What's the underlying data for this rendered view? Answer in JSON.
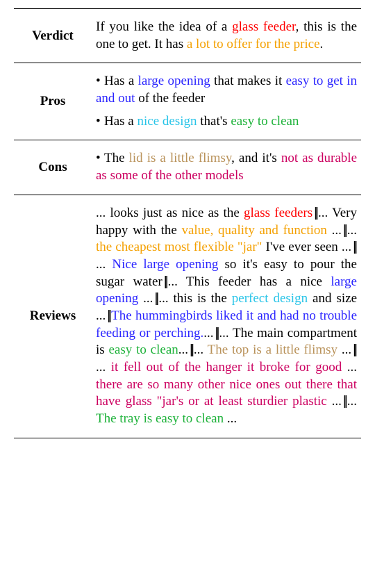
{
  "colors": {
    "red": "#ff0000",
    "orange": "#f4a000",
    "blue": "#2a24ff",
    "cyan": "#28c4e8",
    "green": "#1eb23a",
    "brown": "#b9925a",
    "crimson": "#cc0060",
    "black": "#000000"
  },
  "font": {
    "family": "Times New Roman",
    "size_pt": 19,
    "line_height": 1.3
  },
  "table": {
    "rows": [
      {
        "label": "Verdict",
        "spans": [
          {
            "t": "If you like the idea of a ",
            "c": "black"
          },
          {
            "t": "glass feeder",
            "c": "red"
          },
          {
            "t": ", this is the one to get. It has ",
            "c": "black"
          },
          {
            "t": "a lot to offer for the price",
            "c": "orange"
          },
          {
            "t": ".",
            "c": "black"
          }
        ]
      },
      {
        "label": "Pros",
        "bullets": [
          [
            {
              "t": "Has a ",
              "c": "black"
            },
            {
              "t": "large opening",
              "c": "blue"
            },
            {
              "t": " that makes it ",
              "c": "black"
            },
            {
              "t": "easy to get in and out",
              "c": "blue"
            },
            {
              "t": " of the feeder",
              "c": "black"
            }
          ],
          [
            {
              "t": "Has a ",
              "c": "black"
            },
            {
              "t": "nice design",
              "c": "cyan"
            },
            {
              "t": " that's ",
              "c": "black"
            },
            {
              "t": "easy to clean",
              "c": "green"
            }
          ]
        ]
      },
      {
        "label": "Cons",
        "bullets": [
          [
            {
              "t": "The ",
              "c": "black"
            },
            {
              "t": "lid is a little flimsy",
              "c": "brown"
            },
            {
              "t": ", and it's ",
              "c": "black"
            },
            {
              "t": "not as durable as some of the other models",
              "c": "crimson"
            }
          ]
        ]
      },
      {
        "label": "Reviews",
        "spans": [
          {
            "t": "... looks just as nice as the ",
            "c": "black"
          },
          {
            "t": "glass feeders",
            "c": "red"
          },
          {
            "sep": true
          },
          {
            "t": "... Very happy with the ",
            "c": "black"
          },
          {
            "t": "value, quality and function",
            "c": "orange"
          },
          {
            "t": " ...",
            "c": "black"
          },
          {
            "sep": true
          },
          {
            "t": "... ",
            "c": "black"
          },
          {
            "t": "the cheapest most flexible \"jar\"",
            "c": "orange"
          },
          {
            "t": " I've ever seen ...",
            "c": "black"
          },
          {
            "sep": true
          },
          {
            "t": "... ",
            "c": "black"
          },
          {
            "t": "Nice large opening",
            "c": "blue"
          },
          {
            "t": " so it's easy to pour the sugar water",
            "c": "black"
          },
          {
            "sep": true
          },
          {
            "t": "... This feeder has a nice ",
            "c": "black"
          },
          {
            "t": "large opening",
            "c": "blue"
          },
          {
            "t": " ...",
            "c": "black"
          },
          {
            "sep": true
          },
          {
            "t": "... this is the ",
            "c": "black"
          },
          {
            "t": "perfect design",
            "c": "cyan"
          },
          {
            "t": " and size ...",
            "c": "black"
          },
          {
            "sep": true
          },
          {
            "t": "The hummingbirds liked it and had no trouble feeding or perching.",
            "c": "blue"
          },
          {
            "t": "...",
            "c": "black"
          },
          {
            "sep": true
          },
          {
            "t": "... The main compartment is ",
            "c": "black"
          },
          {
            "t": "easy to clean",
            "c": "green"
          },
          {
            "t": "...",
            "c": "black"
          },
          {
            "sep": true
          },
          {
            "t": "... ",
            "c": "black"
          },
          {
            "t": "The top is a little flimsy",
            "c": "brown"
          },
          {
            "t": " ...",
            "c": "black"
          },
          {
            "sep": true
          },
          {
            "t": "... ",
            "c": "black"
          },
          {
            "t": " it fell out of the hanger it broke for good",
            "c": "crimson"
          },
          {
            "t": " ... ",
            "c": "black"
          },
          {
            "t": " there are so many other nice ones out there that have glass \"jar's or at least sturdier plastic",
            "c": "crimson"
          },
          {
            "t": " ...",
            "c": "black"
          },
          {
            "sep": true
          },
          {
            "t": "... ",
            "c": "black"
          },
          {
            "t": "The tray is easy to clean",
            "c": "green"
          },
          {
            "t": " ...",
            "c": "black"
          }
        ]
      }
    ]
  }
}
